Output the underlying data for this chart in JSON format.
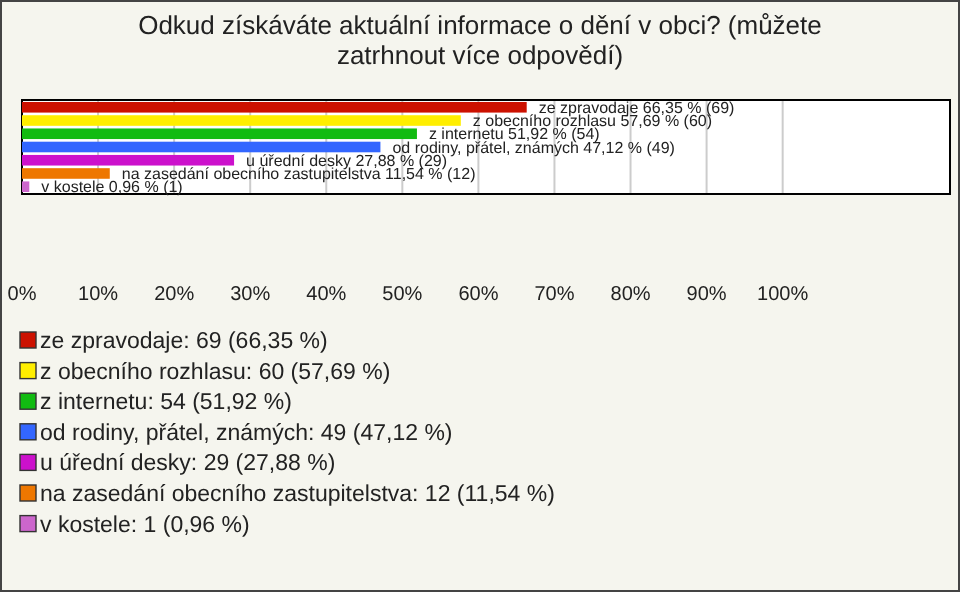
{
  "chart_data": {
    "type": "bar",
    "orientation": "horizontal",
    "title": "Odkud získáváte aktuální informace o dění v obci? (můžete zatrhnout více odpovědí)",
    "categories": [
      null,
      null,
      null,
      null,
      null,
      null,
      null
    ],
    "values": [
      66.35,
      57.69,
      51.92,
      47.12,
      27.88,
      11.54,
      0.96
    ],
    "colors": [
      "#cc1100",
      "#ffee00",
      "#11bb11",
      "#3366ff",
      "#cc11cc",
      "#ee7700",
      "#cc66cc"
    ],
    "value_labels": [
      "ze zpravodaje 66,35 % (69)",
      "z obecního rozhlasu 57,69 % (60)",
      "z internetu 51,92 % (54)",
      "od rodiny, přátel, známých 47,12 % (49)",
      "u úřední desky 27,88 % (29)",
      "na zasedání obecního zastupitelstva 11,54 % (12)",
      "v kostele 0,96 % (1)"
    ],
    "annotations": [
      "ze zpravodaje: 69 (66,35 %)",
      "z obecního rozhlasu: 60 (57,69 %)",
      "z internetu: 54 (51,92 %)",
      "od rodiny, přátel, známých: 49 (47,12 %)",
      "u úřední desky: 29 (27,88 %)",
      "na zasedání obecního zastupitelstva: 12 (11,54 %)",
      "v kostele: 1 (0,96 %)"
    ],
    "xlim": [
      0,
      122
    ],
    "xticks": [
      {
        "value": 0,
        "label": "0%"
      },
      {
        "value": 10,
        "label": "10%"
      },
      {
        "value": 20,
        "label": "20%"
      },
      {
        "value": 30,
        "label": "30%"
      },
      {
        "value": 40,
        "label": "40%"
      },
      {
        "value": 50,
        "label": "50%"
      },
      {
        "value": 60,
        "label": "60%"
      },
      {
        "value": 70,
        "label": "70%"
      },
      {
        "value": 80,
        "label": "80%"
      },
      {
        "value": 90,
        "label": "90%"
      },
      {
        "value": 100,
        "label": "100%"
      }
    ],
    "grid": "x"
  }
}
